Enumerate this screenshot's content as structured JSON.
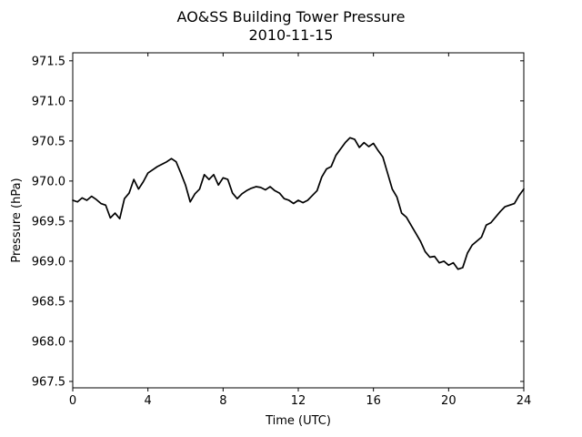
{
  "chart_data": {
    "type": "line",
    "title": "AO&SS Building Tower Pressure",
    "subtitle": "2010-11-15",
    "xlabel": "Time (UTC)",
    "ylabel": "Pressure (hPa)",
    "xlim": [
      0,
      24
    ],
    "ylim": [
      967.42,
      971.6
    ],
    "xticks": [
      0,
      4,
      8,
      12,
      16,
      20,
      24
    ],
    "xtick_labels": [
      "0",
      "4",
      "8",
      "12",
      "16",
      "20",
      "24"
    ],
    "yticks": [
      967.5,
      968.0,
      968.5,
      969.0,
      969.5,
      970.0,
      970.5,
      971.0,
      971.5
    ],
    "ytick_labels": [
      "967.5",
      "968.0",
      "968.5",
      "969.0",
      "969.5",
      "970.0",
      "970.5",
      "971.0",
      "971.5"
    ],
    "grid": false,
    "line_color": "#000000",
    "series": [
      {
        "x": [
          0,
          0.25,
          0.5,
          0.75,
          1.0,
          1.25,
          1.5,
          1.75,
          2.0,
          2.25,
          2.5,
          2.75,
          3.0,
          3.25,
          3.5,
          3.75,
          4.0,
          4.25,
          4.5,
          4.75,
          5.0,
          5.25,
          5.5,
          5.75,
          6.0,
          6.25,
          6.5,
          6.75,
          7.0,
          7.25,
          7.5,
          7.75,
          8.0,
          8.25,
          8.5,
          8.75,
          9.0,
          9.25,
          9.5,
          9.75,
          10.0,
          10.25,
          10.5,
          10.75,
          11.0,
          11.25,
          11.5,
          11.75,
          12.0,
          12.25,
          12.5,
          12.75,
          13.0,
          13.25,
          13.5,
          13.75,
          14.0,
          14.25,
          14.5,
          14.75,
          15.0,
          15.25,
          15.5,
          15.75,
          16.0,
          16.25,
          16.5,
          16.75,
          17.0,
          17.25,
          17.5,
          17.75,
          18.0,
          18.25,
          18.5,
          18.75,
          19.0,
          19.25,
          19.5,
          19.75,
          20.0,
          20.25,
          20.5,
          20.75,
          21.0,
          21.25,
          21.5,
          21.75,
          22.0,
          22.25,
          22.5,
          22.75,
          23.0,
          23.25,
          23.5,
          23.75,
          24.0
        ],
        "values": [
          969.76,
          969.74,
          969.79,
          969.76,
          969.81,
          969.77,
          969.72,
          969.7,
          969.54,
          969.6,
          969.53,
          969.78,
          969.85,
          970.02,
          969.9,
          969.99,
          970.1,
          970.14,
          970.18,
          970.21,
          970.24,
          970.28,
          970.24,
          970.1,
          969.95,
          969.74,
          969.84,
          969.9,
          970.08,
          970.02,
          970.08,
          969.95,
          970.04,
          970.02,
          969.85,
          969.78,
          969.84,
          969.88,
          969.91,
          969.93,
          969.92,
          969.89,
          969.93,
          969.88,
          969.85,
          969.78,
          969.76,
          969.72,
          969.76,
          969.73,
          969.76,
          969.82,
          969.88,
          970.05,
          970.15,
          970.18,
          970.32,
          970.4,
          970.48,
          970.54,
          970.52,
          970.42,
          970.48,
          970.43,
          970.47,
          970.38,
          970.3,
          970.1,
          969.9,
          969.8,
          969.6,
          969.55,
          969.45,
          969.35,
          969.25,
          969.12,
          969.05,
          969.06,
          968.98,
          969.0,
          968.95,
          968.98,
          968.9,
          968.92,
          969.1,
          969.2,
          969.25,
          969.3,
          969.45,
          969.48,
          969.55,
          969.62,
          969.68,
          969.7,
          969.72,
          969.82,
          969.9
        ]
      }
    ]
  }
}
